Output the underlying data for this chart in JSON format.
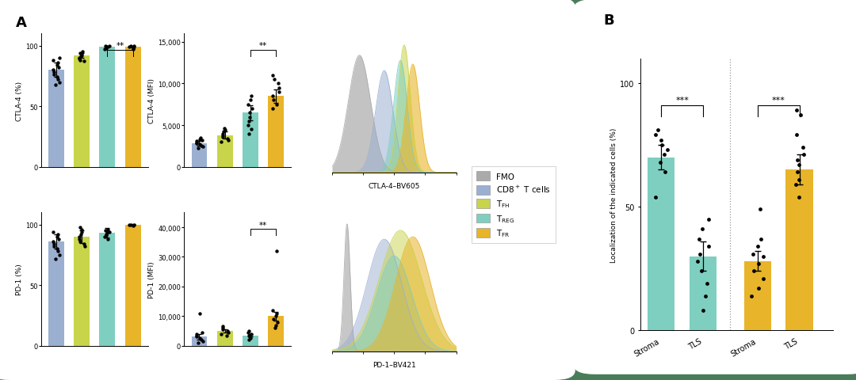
{
  "background_color": "#4a7c59",
  "colors": {
    "CD8": "#9bafd1",
    "TFH": "#c8d44a",
    "TREG": "#7ecfc0",
    "TFR": "#e8b429",
    "FMO": "#aaaaaa"
  },
  "ctla4_pct": {
    "bars": [
      80,
      92,
      99,
      99
    ],
    "errors": [
      6,
      2,
      0.8,
      0.8
    ],
    "dots": [
      [
        68,
        70,
        72,
        74,
        76,
        78,
        80,
        82,
        84,
        86,
        88,
        90
      ],
      [
        87,
        88,
        89,
        90,
        91,
        92,
        93,
        94,
        95
      ],
      [
        97,
        98,
        99,
        99,
        100,
        100
      ],
      [
        97,
        98,
        99,
        100,
        100
      ]
    ],
    "ylim": [
      0,
      110
    ],
    "yticks": [
      0,
      50,
      100
    ],
    "ylabel": "CTLA-4 (%)"
  },
  "ctla4_mfi": {
    "bars": [
      2800,
      3800,
      6500,
      8500
    ],
    "errors": [
      300,
      400,
      900,
      800
    ],
    "dots": [
      [
        2200,
        2400,
        2500,
        2700,
        2800,
        2900,
        3100,
        3200,
        3300,
        3500
      ],
      [
        3000,
        3200,
        3400,
        3600,
        3800,
        4000,
        4200,
        4400,
        4600
      ],
      [
        4000,
        4500,
        5000,
        5500,
        6000,
        6500,
        7000,
        7500,
        8000,
        8500
      ],
      [
        7000,
        7500,
        8000,
        8500,
        9000,
        9500,
        10000,
        10500,
        11000
      ]
    ],
    "ylim": [
      0,
      16000
    ],
    "yticks": [
      0,
      5000,
      10000,
      15000
    ],
    "ytick_labels": [
      "0",
      "5,000",
      "10,000",
      "15,000"
    ],
    "ylabel": "CTLA-4 (MFI)"
  },
  "pd1_pct": {
    "bars": [
      86,
      90,
      93,
      100
    ],
    "errors": [
      6,
      5,
      4,
      0.3
    ],
    "dots": [
      [
        72,
        75,
        78,
        80,
        82,
        84,
        86,
        88,
        90,
        92,
        94
      ],
      [
        82,
        84,
        86,
        88,
        90,
        92,
        94,
        96,
        98
      ],
      [
        88,
        90,
        91,
        92,
        93,
        94,
        95,
        96
      ],
      [
        99,
        100,
        100,
        100
      ]
    ],
    "ylim": [
      0,
      110
    ],
    "yticks": [
      0,
      50,
      100
    ],
    "ylabel": "PD-1 (%)"
  },
  "pd1_mfi": {
    "bars": [
      3000,
      5000,
      3500,
      10000
    ],
    "errors": [
      1000,
      600,
      500,
      1500
    ],
    "dots": [
      [
        1000,
        1500,
        2000,
        2500,
        3000,
        3500,
        4000,
        4500,
        11000
      ],
      [
        3500,
        4000,
        4500,
        5000,
        5500,
        6000,
        6500
      ],
      [
        2000,
        2500,
        3000,
        3500,
        4000,
        4500,
        5000
      ],
      [
        6000,
        7000,
        8000,
        9000,
        10000,
        11000,
        12000,
        32000
      ]
    ],
    "ylim": [
      0,
      45000
    ],
    "yticks": [
      0,
      10000,
      20000,
      30000,
      40000
    ],
    "ytick_labels": [
      "0",
      "10,000",
      "20,000",
      "30,000",
      "40,000"
    ],
    "ylabel": "PD-1 (MFI)"
  },
  "panel_b": {
    "bars": [
      70,
      30,
      28,
      65
    ],
    "errors": [
      5,
      6,
      4,
      6
    ],
    "dots": [
      [
        54,
        64,
        68,
        71,
        73,
        75,
        77,
        79,
        81
      ],
      [
        8,
        14,
        19,
        24,
        28,
        31,
        34,
        37,
        41,
        45
      ],
      [
        14,
        17,
        21,
        24,
        27,
        30,
        31,
        34,
        37,
        49
      ],
      [
        54,
        59,
        61,
        64,
        67,
        69,
        71,
        74,
        79,
        87,
        89
      ]
    ],
    "xlabels": [
      "Stroma",
      "TLS",
      "Stroma",
      "TLS"
    ],
    "ylim": [
      0,
      110
    ],
    "yticks": [
      0,
      50,
      100
    ],
    "ylabel": "Localization of the indicated cells (%)"
  }
}
